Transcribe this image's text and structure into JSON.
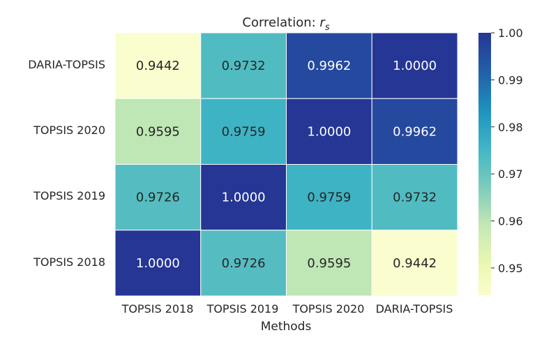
{
  "chart_data": {
    "type": "heatmap",
    "title_prefix": "Correlation: ",
    "title_symbol": "r",
    "title_subscript": "s",
    "xlabel": "Methods",
    "ylabel": "",
    "x_categories": [
      "TOPSIS 2018",
      "TOPSIS 2019",
      "TOPSIS 2020",
      "DARIA-TOPSIS"
    ],
    "y_categories": [
      "DARIA-TOPSIS",
      "TOPSIS 2020",
      "TOPSIS 2019",
      "TOPSIS 2018"
    ],
    "values": [
      [
        0.9442,
        0.9732,
        0.9962,
        1.0
      ],
      [
        0.9595,
        0.9759,
        1.0,
        0.9962
      ],
      [
        0.9726,
        1.0,
        0.9759,
        0.9732
      ],
      [
        1.0,
        0.9726,
        0.9595,
        0.9442
      ]
    ],
    "labels": [
      [
        "0.9442",
        "0.9732",
        "0.9962",
        "1.0000"
      ],
      [
        "0.9595",
        "0.9759",
        "1.0000",
        "0.9962"
      ],
      [
        "0.9726",
        "1.0000",
        "0.9759",
        "0.9732"
      ],
      [
        "1.0000",
        "0.9726",
        "0.9595",
        "0.9442"
      ]
    ],
    "colormap": "YlGnBu",
    "vmin": 0.9442,
    "vmax": 1.0,
    "colorbar_ticks": [
      0.95,
      0.96,
      0.97,
      0.98,
      0.99,
      1.0
    ],
    "colorbar_tick_labels": [
      "0.95",
      "0.96",
      "0.97",
      "0.98",
      "0.99",
      "1.00"
    ]
  }
}
